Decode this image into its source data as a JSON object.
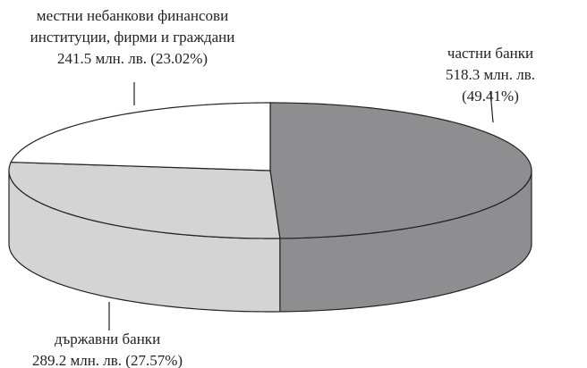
{
  "chart_data": {
    "type": "pie",
    "categories": [
      "частни банки",
      "държавни банки",
      "местни небанкови финансови\nинституции, фирми и граждани"
    ],
    "values": [
      518.3,
      289.2,
      241.5
    ],
    "value_labels": [
      "518.3 млн. лв. (49.41%)",
      "289.2 млн. лв. (27.57%)",
      "241.5 млн. лв. (23.02%)"
    ],
    "colors": [
      "#8e8e90",
      "#d4d4d4",
      "#ffffff"
    ]
  }
}
